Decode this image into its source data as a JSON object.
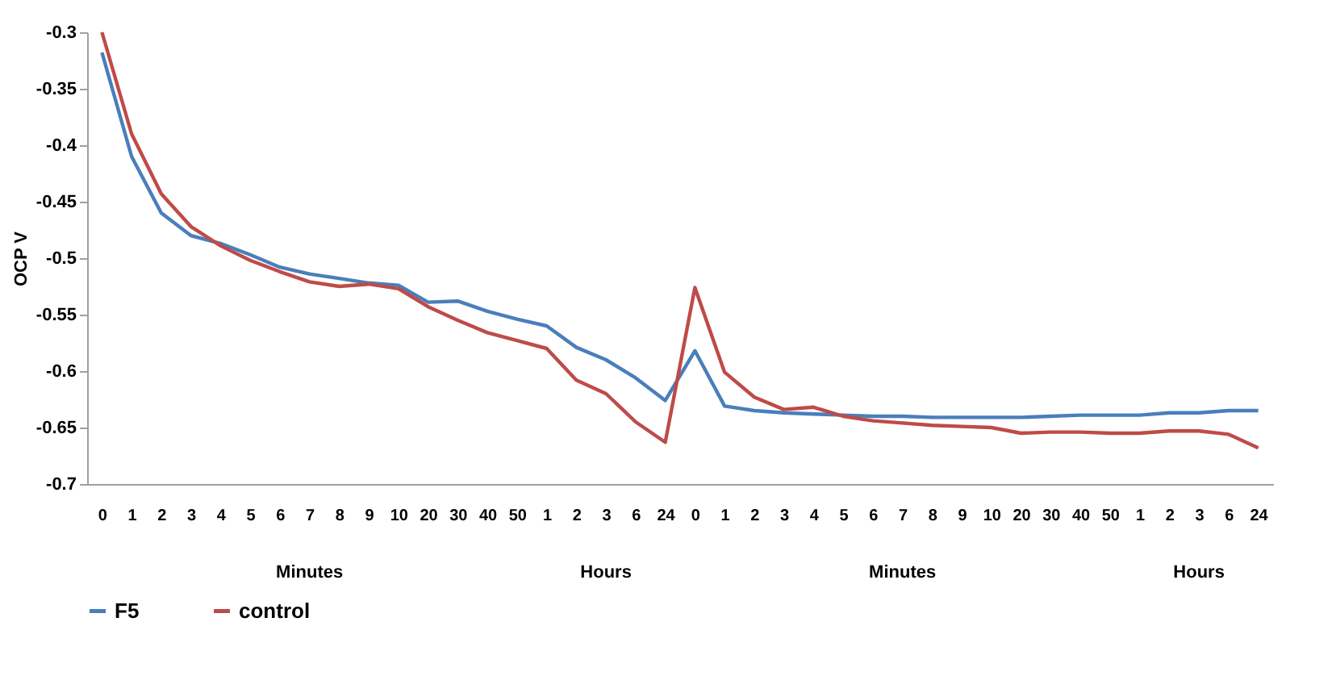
{
  "chart_data": {
    "type": "line",
    "ylabel": "OCP V",
    "categories": [
      "0",
      "1",
      "2",
      "3",
      "4",
      "5",
      "6",
      "7",
      "8",
      "9",
      "10",
      "20",
      "30",
      "40",
      "50",
      "1",
      "2",
      "3",
      "6",
      "24",
      "0",
      "1",
      "2",
      "3",
      "4",
      "5",
      "6",
      "7",
      "8",
      "9",
      "10",
      "20",
      "30",
      "40",
      "50",
      "1",
      "2",
      "3",
      "6",
      "24"
    ],
    "series": [
      {
        "name": "F5",
        "color": "#4a7ebb",
        "values": [
          -0.318,
          -0.41,
          -0.46,
          -0.48,
          -0.487,
          -0.497,
          -0.508,
          -0.514,
          -0.518,
          -0.522,
          -0.524,
          -0.539,
          -0.538,
          -0.547,
          -0.554,
          -0.56,
          -0.579,
          -0.59,
          -0.606,
          -0.626,
          -0.582,
          -0.631,
          -0.635,
          -0.637,
          -0.638,
          -0.639,
          -0.64,
          -0.64,
          -0.641,
          -0.641,
          -0.641,
          -0.641,
          -0.64,
          -0.639,
          -0.639,
          -0.639,
          -0.637,
          -0.637,
          -0.635,
          -0.635
        ]
      },
      {
        "name": "control",
        "color": "#be4b48",
        "values": [
          -0.3,
          -0.39,
          -0.443,
          -0.472,
          -0.489,
          -0.502,
          -0.512,
          -0.521,
          -0.525,
          -0.523,
          -0.527,
          -0.543,
          -0.555,
          -0.566,
          -0.573,
          -0.58,
          -0.608,
          -0.62,
          -0.645,
          -0.663,
          -0.526,
          -0.601,
          -0.623,
          -0.634,
          -0.632,
          -0.64,
          -0.644,
          -0.646,
          -0.648,
          -0.649,
          -0.65,
          -0.655,
          -0.654,
          -0.654,
          -0.655,
          -0.655,
          -0.653,
          -0.653,
          -0.656,
          -0.668
        ]
      }
    ],
    "ylim": [
      -0.7,
      -0.3
    ],
    "yticks": [
      -0.7,
      -0.65,
      -0.6,
      -0.55,
      -0.5,
      -0.45,
      -0.4,
      -0.35,
      -0.3
    ],
    "annotations": [
      "Minutes",
      "Hours",
      "Minutes",
      "Hours"
    ],
    "legend": "bottom",
    "marker": "none",
    "line_style": "solid"
  }
}
